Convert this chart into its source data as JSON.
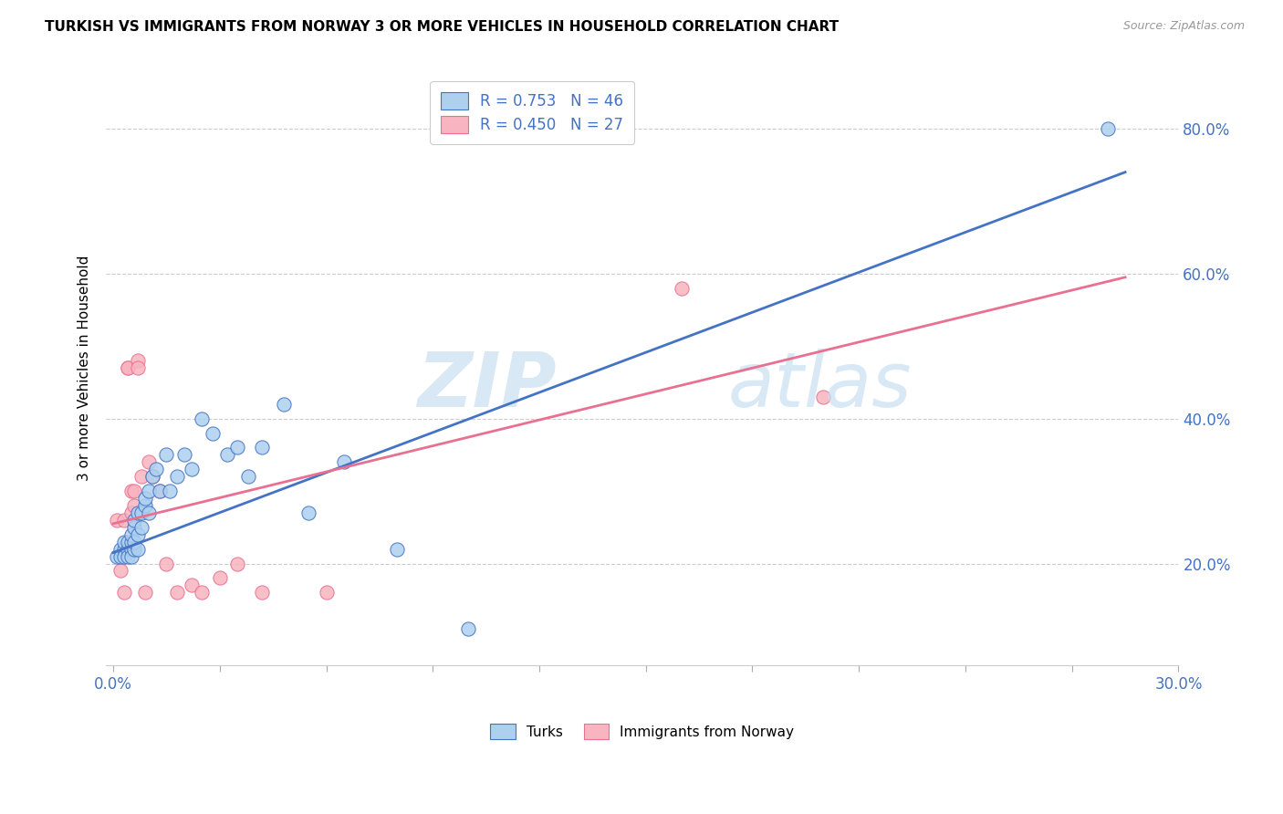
{
  "title": "TURKISH VS IMMIGRANTS FROM NORWAY 3 OR MORE VEHICLES IN HOUSEHOLD CORRELATION CHART",
  "source": "Source: ZipAtlas.com",
  "ylabel": "3 or more Vehicles in Household",
  "ytick_labels": [
    "20.0%",
    "40.0%",
    "60.0%",
    "80.0%"
  ],
  "ytick_values": [
    0.2,
    0.4,
    0.6,
    0.8
  ],
  "xlim": [
    -0.002,
    0.3
  ],
  "ylim": [
    0.06,
    0.88
  ],
  "legend_turks": "R = 0.753   N = 46",
  "legend_norway": "R = 0.450   N = 27",
  "turks_color": "#ADD0EF",
  "norway_color": "#F8B4C0",
  "turks_line_color": "#4472C4",
  "norway_line_color": "#E87090",
  "turks_scatter_x": [
    0.001,
    0.002,
    0.002,
    0.003,
    0.003,
    0.003,
    0.004,
    0.004,
    0.004,
    0.005,
    0.005,
    0.005,
    0.005,
    0.006,
    0.006,
    0.006,
    0.006,
    0.007,
    0.007,
    0.007,
    0.008,
    0.008,
    0.009,
    0.009,
    0.01,
    0.01,
    0.011,
    0.012,
    0.013,
    0.015,
    0.016,
    0.018,
    0.02,
    0.022,
    0.025,
    0.028,
    0.032,
    0.035,
    0.038,
    0.042,
    0.048,
    0.055,
    0.065,
    0.08,
    0.1,
    0.28
  ],
  "turks_scatter_y": [
    0.21,
    0.22,
    0.21,
    0.22,
    0.23,
    0.21,
    0.22,
    0.23,
    0.21,
    0.22,
    0.23,
    0.24,
    0.21,
    0.22,
    0.25,
    0.23,
    0.26,
    0.24,
    0.27,
    0.22,
    0.27,
    0.25,
    0.28,
    0.29,
    0.3,
    0.27,
    0.32,
    0.33,
    0.3,
    0.35,
    0.3,
    0.32,
    0.35,
    0.33,
    0.4,
    0.38,
    0.35,
    0.36,
    0.32,
    0.36,
    0.42,
    0.27,
    0.34,
    0.22,
    0.11,
    0.8
  ],
  "norway_scatter_x": [
    0.001,
    0.002,
    0.003,
    0.003,
    0.004,
    0.004,
    0.005,
    0.005,
    0.006,
    0.006,
    0.007,
    0.007,
    0.008,
    0.009,
    0.01,
    0.011,
    0.013,
    0.015,
    0.018,
    0.022,
    0.025,
    0.03,
    0.035,
    0.042,
    0.06,
    0.16,
    0.2
  ],
  "norway_scatter_y": [
    0.26,
    0.19,
    0.26,
    0.16,
    0.47,
    0.47,
    0.3,
    0.27,
    0.3,
    0.28,
    0.48,
    0.47,
    0.32,
    0.16,
    0.34,
    0.32,
    0.3,
    0.2,
    0.16,
    0.17,
    0.16,
    0.18,
    0.2,
    0.16,
    0.16,
    0.58,
    0.43
  ],
  "turks_line_x": [
    0.0,
    0.285
  ],
  "turks_line_y": [
    0.215,
    0.74
  ],
  "norway_line_x": [
    0.0,
    0.285
  ],
  "norway_line_y": [
    0.255,
    0.595
  ]
}
